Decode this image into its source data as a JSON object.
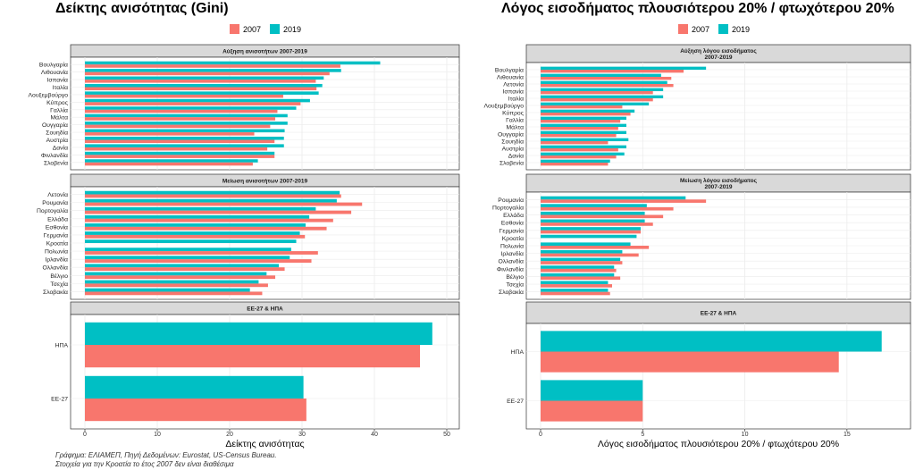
{
  "colors": {
    "y2007": "#f8766d",
    "y2019": "#00bfc4",
    "strip": "#d9d9d9",
    "grid": "#ebebeb"
  },
  "footnote": {
    "line1": "Γράφημα: ΕΛΙΑΜΕΠ, Πηγή Δεδομένων: Eurostat, US-Census Bureau.",
    "line2": "Στοιχεία για την Κροατία το έτος 2007 δεν είναι διαθέσιμα"
  },
  "chart_data": [
    {
      "type": "bar",
      "title": "Δείκτης ανισότητας (Gini)",
      "xlabel": "Δείκτης ανισότητας",
      "xlim": [
        0,
        50
      ],
      "xticks": [
        0,
        10,
        20,
        30,
        40,
        50
      ],
      "legend": {
        "labels": [
          "2007",
          "2019"
        ],
        "placement": "top"
      },
      "panels": [
        {
          "strip": [
            "Αύξηση ανισοτήτων 2007-2019"
          ],
          "categories": [
            "Βουλγαρία",
            "Λιθουανία",
            "Ισπανία",
            "Ιταλία",
            "Λουξεμβούργο",
            "Κύπρος",
            "Γαλλία",
            "Μάλτα",
            "Ουγγαρία",
            "Σουηδία",
            "Αυστρία",
            "Δανία",
            "Φινλανδία",
            "Σλοβενία"
          ],
          "series": [
            {
              "name": "2007",
              "values": [
                35.3,
                33.8,
                31.9,
                32.0,
                27.4,
                29.8,
                26.6,
                26.3,
                25.6,
                23.4,
                26.2,
                25.2,
                26.2,
                23.2
              ]
            },
            {
              "name": "2019",
              "values": [
                40.8,
                35.4,
                33.0,
                32.8,
                32.3,
                31.1,
                29.2,
                28.0,
                28.0,
                27.6,
                27.5,
                27.5,
                26.2,
                23.9
              ]
            }
          ]
        },
        {
          "strip": [
            "Μείωση ανισοτήτων 2007-2019"
          ],
          "categories": [
            "Λετονία",
            "Ρουμανία",
            "Πορτογαλία",
            "Ελλάδα",
            "Εσθονία",
            "Γερμανία",
            "Κροατία",
            "Πολωνία",
            "Ιρλανδία",
            "Ολλανδία",
            "Βέλγιο",
            "Τσεχία",
            "Σλοβακία"
          ],
          "series": [
            {
              "name": "2007",
              "values": [
                35.4,
                38.3,
                36.8,
                34.3,
                33.4,
                30.4,
                null,
                32.2,
                31.3,
                27.6,
                26.3,
                25.3,
                24.5
              ]
            },
            {
              "name": "2019",
              "values": [
                35.2,
                34.8,
                31.9,
                31.0,
                30.5,
                29.7,
                29.2,
                28.5,
                28.3,
                26.8,
                25.1,
                24.0,
                22.8
              ]
            }
          ]
        },
        {
          "strip": [
            "ΕΕ-27 & ΗΠΑ"
          ],
          "categories": [
            "ΗΠΑ",
            "ΕΕ-27"
          ],
          "series": [
            {
              "name": "2007",
              "values": [
                46.3,
                30.6
              ]
            },
            {
              "name": "2019",
              "values": [
                48.0,
                30.2
              ]
            }
          ]
        }
      ]
    },
    {
      "type": "bar",
      "title": "Λόγος εισοδήματος πλουσιότερου 20% / φτωχότερου 20%",
      "xlabel": "Λόγος εισοδήματος πλουσιότερου 20% / φτωχότερου 20%",
      "xlim": [
        0,
        17.5
      ],
      "xticks": [
        0,
        5,
        10,
        15
      ],
      "legend": {
        "labels": [
          "2007",
          "2019"
        ],
        "placement": "top"
      },
      "panels": [
        {
          "strip": [
            "Αύξηση λόγου εισοδήματος",
            "2007-2019"
          ],
          "categories": [
            "Βουλγαρία",
            "Λιθουανία",
            "Λετονία",
            "Ισπανία",
            "Ιταλία",
            "Λουξεμβούργο",
            "Κύπρος",
            "Γαλλία",
            "Μάλτα",
            "Ουγγαρία",
            "Σουηδία",
            "Αυστρία",
            "Δανία",
            "Σλοβενία"
          ],
          "series": [
            {
              "name": "2007",
              "values": [
                7.0,
                6.4,
                6.5,
                5.5,
                5.5,
                4.0,
                4.4,
                3.9,
                3.8,
                3.7,
                3.3,
                3.8,
                3.7,
                3.3
              ]
            },
            {
              "name": "2019",
              "values": [
                8.1,
                5.9,
                6.2,
                6.0,
                6.0,
                5.3,
                4.6,
                4.2,
                4.2,
                4.2,
                4.3,
                4.2,
                4.1,
                3.4
              ]
            }
          ]
        },
        {
          "strip": [
            "Μείωση λόγου εισοδήματος",
            "2007-2019"
          ],
          "categories": [
            "Ρουμανία",
            "Πορτογαλία",
            "Ελλάδα",
            "Εσθονία",
            "Γερμανία",
            "Κροατία",
            "Πολωνία",
            "Ιρλανδία",
            "Ολλανδία",
            "Φινλανδία",
            "Βέλγιο",
            "Τσεχία",
            "Σλοβακία"
          ],
          "series": [
            {
              "name": "2007",
              "values": [
                8.1,
                6.5,
                6.0,
                5.5,
                4.9,
                null,
                5.3,
                4.8,
                4.0,
                3.7,
                3.9,
                3.5,
                3.4
              ]
            },
            {
              "name": "2019",
              "values": [
                7.1,
                5.2,
                5.1,
                5.1,
                4.9,
                4.7,
                4.4,
                4.0,
                3.9,
                3.6,
                3.6,
                3.3,
                3.3
              ]
            }
          ]
        },
        {
          "strip": [
            "ΕΕ-27 & ΗΠΑ"
          ],
          "categories": [
            "ΗΠΑ",
            "ΕΕ-27"
          ],
          "series": [
            {
              "name": "2007",
              "values": [
                14.6,
                5.0
              ]
            },
            {
              "name": "2019",
              "values": [
                16.7,
                5.0
              ]
            }
          ]
        }
      ]
    }
  ]
}
